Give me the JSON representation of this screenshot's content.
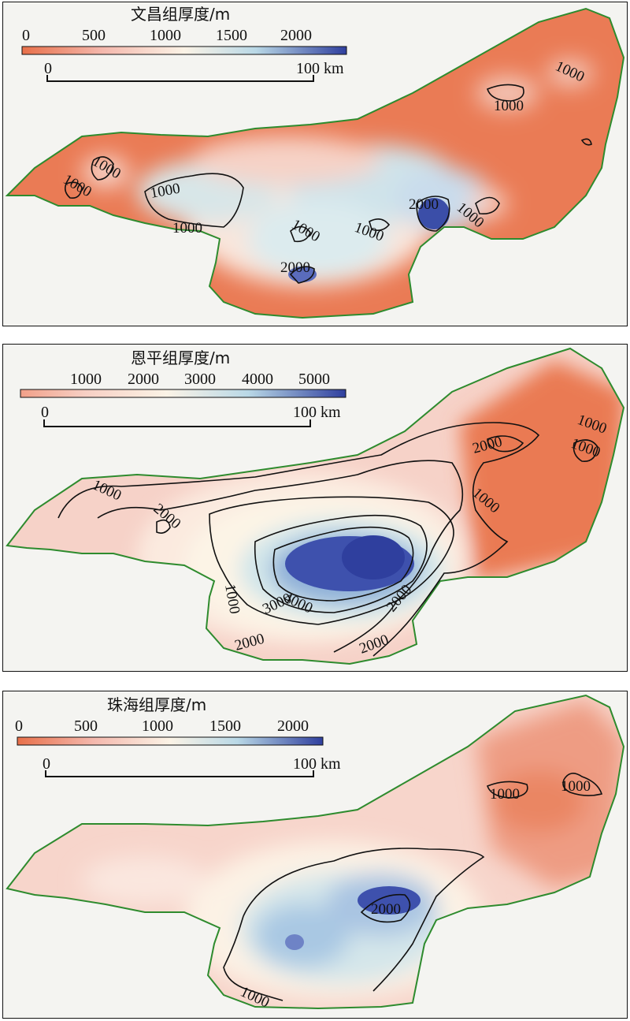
{
  "panels": [
    {
      "title": "文昌组厚度/m",
      "legend_ticks": [
        "0",
        "500",
        "1000",
        "1500",
        "2000"
      ],
      "scale": {
        "start": "0",
        "end": "100 km"
      },
      "contour_labels": [
        "1000",
        "1000",
        "1000",
        "1000",
        "1000",
        "1000",
        "1000",
        "2000",
        "1000",
        "2000",
        "1000",
        "1000"
      ],
      "colors": {
        "low": "#e8704a",
        "mid": "#fbf3e6",
        "high": "#2f3f9e",
        "boundary": "#2e8b2e"
      }
    },
    {
      "title": "恩平组厚度/m",
      "legend_ticks": [
        "1000",
        "2000",
        "3000",
        "4000",
        "5000"
      ],
      "scale": {
        "start": "0",
        "end": "100 km"
      },
      "contour_labels": [
        "1000",
        "1000",
        "2000",
        "1000",
        "2000",
        "1000",
        "4000",
        "3000",
        "1000",
        "2000",
        "2000",
        "2000"
      ],
      "colors": {
        "low": "#e8704a",
        "mid": "#fbf3e6",
        "high": "#2f3f9e",
        "boundary": "#2e8b2e"
      }
    },
    {
      "title": "珠海组厚度/m",
      "legend_ticks": [
        "0",
        "500",
        "1000",
        "1500",
        "2000"
      ],
      "scale": {
        "start": "0",
        "end": "100 km"
      },
      "contour_labels": [
        "1000",
        "1000",
        "2000",
        "1000"
      ],
      "colors": {
        "low": "#e8704a",
        "mid": "#fbf3e6",
        "high": "#2f3f9e",
        "boundary": "#2e8b2e"
      }
    }
  ]
}
